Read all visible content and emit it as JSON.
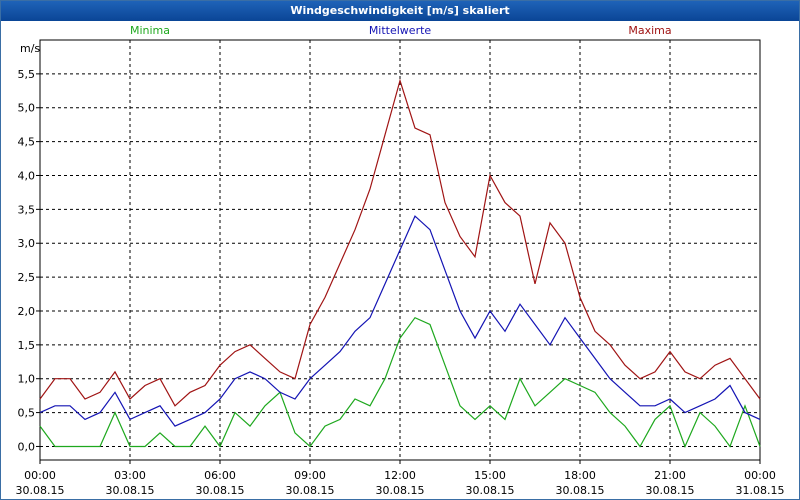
{
  "window": {
    "title": "Windgeschwindigkeit [m/s] skaliert"
  },
  "chart_data": {
    "type": "line",
    "title": "Windgeschwindigkeit [m/s] skaliert",
    "ylabel": "m/s",
    "ylim": [
      -0.2,
      6.0
    ],
    "xlim_hours": [
      0,
      24
    ],
    "grid": true,
    "legend_placement": "top",
    "y_ticks": [
      "0,0",
      "0,5",
      "1,0",
      "1,5",
      "2,0",
      "2,5",
      "3,0",
      "3,5",
      "4,0",
      "4,5",
      "5,0",
      "5,5"
    ],
    "x_ticks": [
      {
        "time": "00:00",
        "date": "30.08.15"
      },
      {
        "time": "03:00",
        "date": "30.08.15"
      },
      {
        "time": "06:00",
        "date": "30.08.15"
      },
      {
        "time": "09:00",
        "date": "30.08.15"
      },
      {
        "time": "12:00",
        "date": "30.08.15"
      },
      {
        "time": "15:00",
        "date": "30.08.15"
      },
      {
        "time": "18:00",
        "date": "30.08.15"
      },
      {
        "time": "21:00",
        "date": "30.08.15"
      },
      {
        "time": "00:00",
        "date": "31.08.15"
      }
    ],
    "x_hours": [
      0,
      0.5,
      1,
      1.5,
      2,
      2.5,
      3,
      3.5,
      4,
      4.5,
      5,
      5.5,
      6,
      6.5,
      7,
      7.5,
      8,
      8.5,
      9,
      9.5,
      10,
      10.5,
      11,
      11.5,
      12,
      12.5,
      13,
      13.5,
      14,
      14.5,
      15,
      15.5,
      16,
      16.5,
      17,
      17.5,
      18,
      18.5,
      19,
      19.5,
      20,
      20.5,
      21,
      21.5,
      22,
      22.5,
      23,
      23.5,
      24
    ],
    "series": [
      {
        "name": "Minima",
        "color": "#1ea81e",
        "values": [
          0.3,
          0.0,
          0.0,
          0.0,
          0.0,
          0.5,
          0.0,
          0.0,
          0.2,
          0.0,
          0.0,
          0.3,
          0.0,
          0.5,
          0.3,
          0.6,
          0.8,
          0.2,
          0.0,
          0.3,
          0.4,
          0.7,
          0.6,
          1.0,
          1.6,
          1.9,
          1.8,
          1.2,
          0.6,
          0.4,
          0.6,
          0.4,
          1.0,
          0.6,
          0.8,
          1.0,
          0.9,
          0.8,
          0.5,
          0.3,
          0.0,
          0.4,
          0.6,
          0.0,
          0.5,
          0.3,
          0.0,
          0.6,
          0.0
        ]
      },
      {
        "name": "Mittelwerte",
        "color": "#1414b4",
        "values": [
          0.5,
          0.6,
          0.6,
          0.4,
          0.5,
          0.8,
          0.4,
          0.5,
          0.6,
          0.3,
          0.4,
          0.5,
          0.7,
          1.0,
          1.1,
          1.0,
          0.8,
          0.7,
          1.0,
          1.2,
          1.4,
          1.7,
          1.9,
          2.4,
          2.9,
          3.4,
          3.2,
          2.6,
          2.0,
          1.6,
          2.0,
          1.7,
          2.1,
          1.8,
          1.5,
          1.9,
          1.6,
          1.3,
          1.0,
          0.8,
          0.6,
          0.6,
          0.7,
          0.5,
          0.6,
          0.7,
          0.9,
          0.5,
          0.4
        ]
      },
      {
        "name": "Maxima",
        "color": "#a01414",
        "values": [
          0.7,
          1.0,
          1.0,
          0.7,
          0.8,
          1.1,
          0.7,
          0.9,
          1.0,
          0.6,
          0.8,
          0.9,
          1.2,
          1.4,
          1.5,
          1.3,
          1.1,
          1.0,
          1.8,
          2.2,
          2.7,
          3.2,
          3.8,
          4.6,
          5.4,
          4.7,
          4.6,
          3.6,
          3.1,
          2.8,
          4.0,
          3.6,
          3.4,
          2.4,
          3.3,
          3.0,
          2.2,
          1.7,
          1.5,
          1.2,
          1.0,
          1.1,
          1.4,
          1.1,
          1.0,
          1.2,
          1.3,
          1.0,
          0.7
        ]
      }
    ]
  }
}
